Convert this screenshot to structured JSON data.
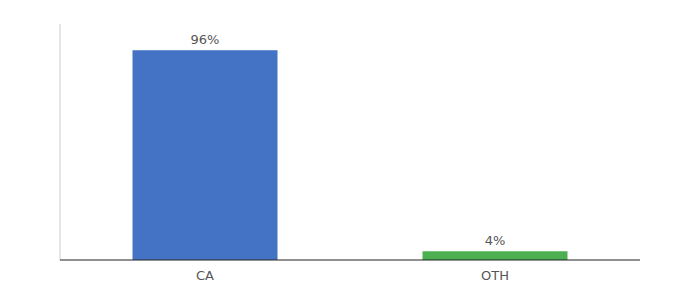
{
  "chart_data": {
    "type": "bar",
    "categories": [
      "CA",
      "OTH"
    ],
    "values": [
      96,
      4
    ],
    "value_labels": [
      "96%",
      "4%"
    ],
    "colors": [
      "#4472c4",
      "#4caf50"
    ],
    "ylim": [
      0,
      108
    ],
    "yticks": [],
    "data_labels": true,
    "tick_labels": "x",
    "grid": false
  }
}
